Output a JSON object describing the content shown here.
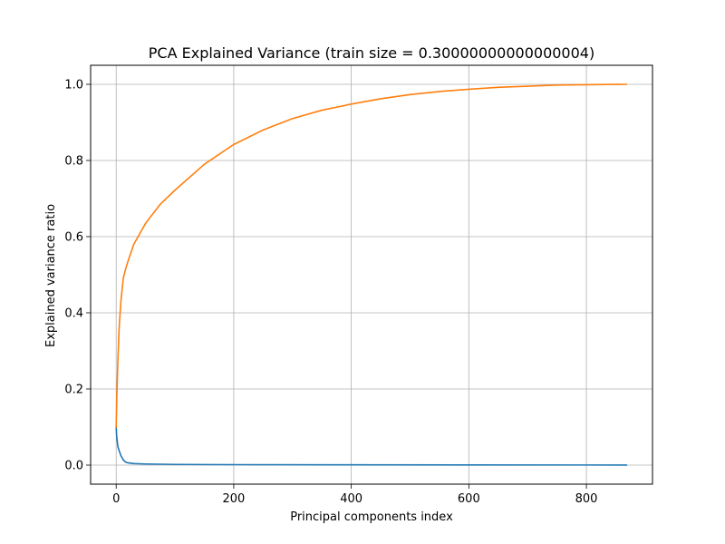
{
  "chart_data": {
    "type": "line",
    "title": "PCA Explained Variance (train size = 0.30000000000000004)",
    "xlabel": "Principal components index",
    "ylabel": "Explained variance ratio",
    "xlim": [
      -43.5,
      912.5
    ],
    "ylim": [
      -0.05,
      1.05
    ],
    "xticks": [
      0,
      200,
      400,
      600,
      800
    ],
    "xtick_labels": [
      "0",
      "200",
      "400",
      "600",
      "800"
    ],
    "yticks": [
      0.0,
      0.2,
      0.4,
      0.6,
      0.8,
      1.0
    ],
    "ytick_labels": [
      "0.0",
      "0.2",
      "0.4",
      "0.6",
      "0.8",
      "1.0"
    ],
    "grid": true,
    "series": [
      {
        "color": "#1f77b4",
        "x": [
          0,
          1,
          2,
          3,
          5,
          8,
          12,
          16,
          20,
          30,
          50,
          100,
          200,
          400,
          600,
          800,
          868
        ],
        "y": [
          0.1,
          0.072,
          0.06,
          0.048,
          0.038,
          0.025,
          0.014,
          0.008,
          0.006,
          0.004,
          0.003,
          0.0018,
          0.0012,
          0.0008,
          0.0005,
          0.0003,
          0.0001
        ]
      },
      {
        "color": "#ff7f0e",
        "x": [
          0,
          1,
          2,
          3,
          5,
          8,
          12,
          16,
          20,
          30,
          50,
          75,
          100,
          150,
          200,
          250,
          300,
          350,
          400,
          450,
          500,
          550,
          600,
          650,
          700,
          750,
          800,
          850,
          868
        ],
        "y": [
          0.1,
          0.172,
          0.232,
          0.28,
          0.36,
          0.43,
          0.49,
          0.515,
          0.535,
          0.58,
          0.635,
          0.685,
          0.722,
          0.79,
          0.842,
          0.88,
          0.91,
          0.932,
          0.948,
          0.962,
          0.973,
          0.981,
          0.987,
          0.992,
          0.995,
          0.998,
          0.999,
          0.9998,
          1.0
        ]
      }
    ]
  }
}
